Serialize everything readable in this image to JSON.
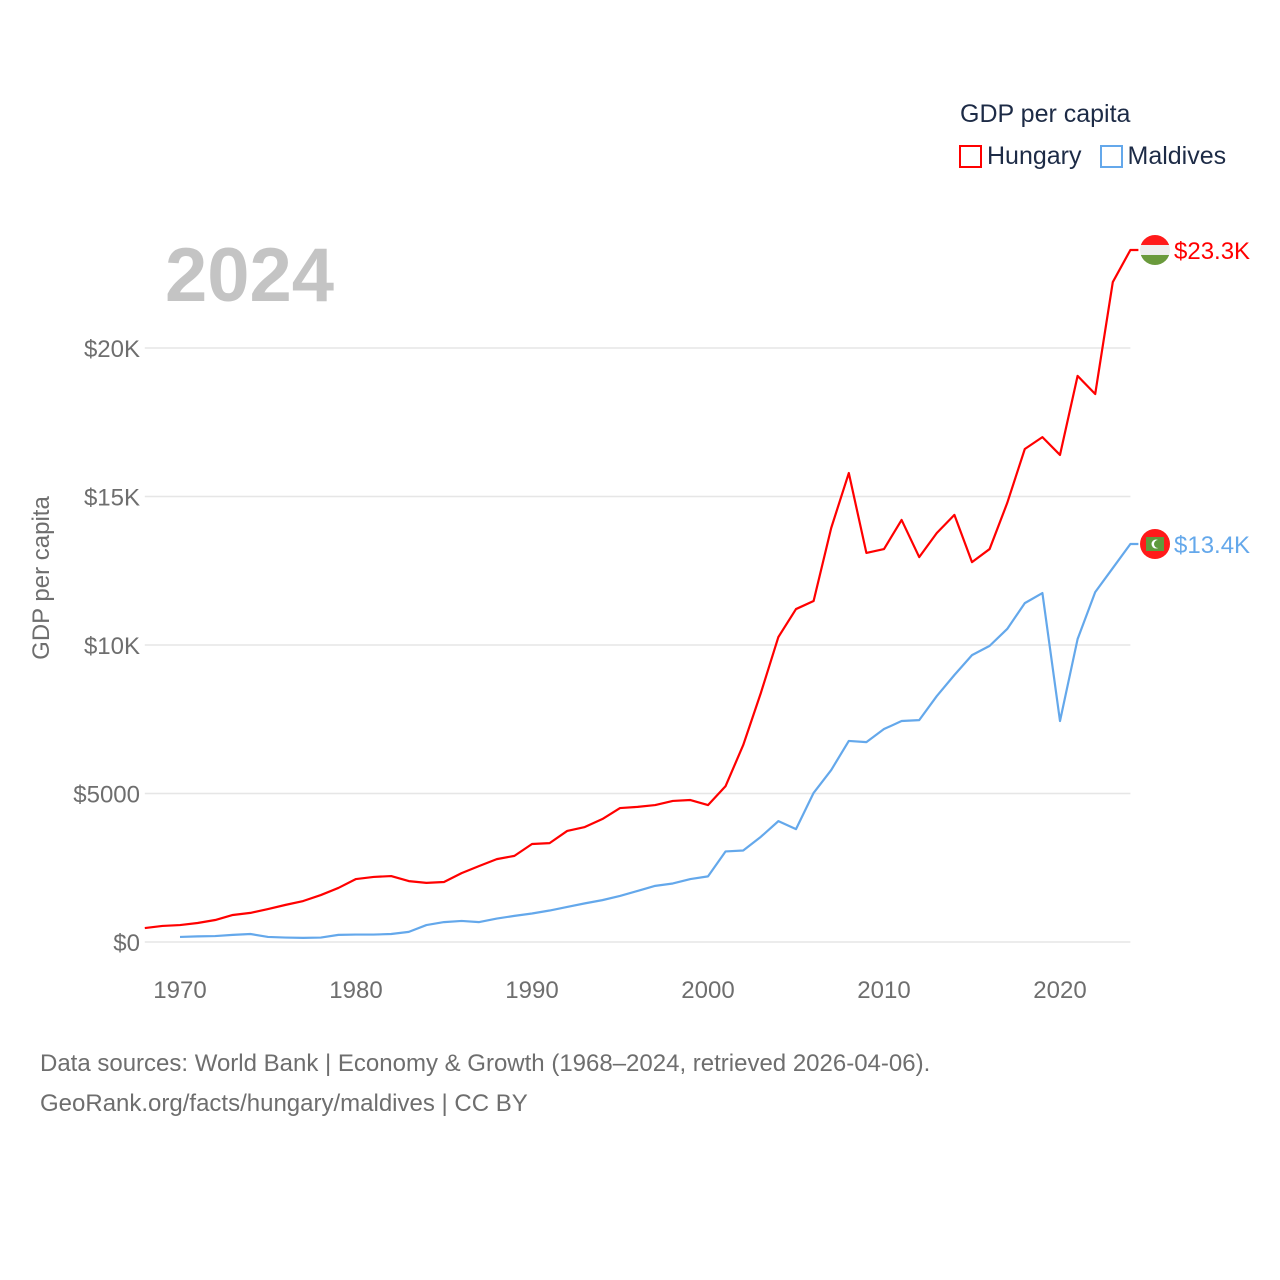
{
  "legend": {
    "title": "GDP per capita",
    "items": [
      {
        "name": "Hungary",
        "color": "#ff0000"
      },
      {
        "name": "Maldives",
        "color": "#64a8eb"
      }
    ]
  },
  "year_label": "2024",
  "footer": {
    "line1": "Data sources: World Bank | Economy & Growth (1968–2024, retrieved 2026-04-06).",
    "line2": "GeoRank.org/facts/hungary/maldives | CC BY"
  },
  "chart_data": {
    "type": "line",
    "title": "",
    "xlabel": "",
    "ylabel": "GDP per capita",
    "xlim": [
      1968,
      2024
    ],
    "ylim": [
      0,
      23300
    ],
    "x_ticks": [
      1970,
      1980,
      1990,
      2000,
      2010,
      2020
    ],
    "x_tick_labels": [
      "1970",
      "1980",
      "1990",
      "2000",
      "2010",
      "2020"
    ],
    "y_ticks": [
      0,
      5000,
      10000,
      15000,
      20000
    ],
    "y_tick_labels": [
      "$0",
      "$5000",
      "$10K",
      "$15K",
      "$20K"
    ],
    "grid": true,
    "legend_position": "top-right",
    "series": [
      {
        "name": "Hungary",
        "color": "#ff0000",
        "end_label": "$23.3K",
        "start_year": 1968,
        "values": [
          470,
          540,
          570,
          640,
          740,
          910,
          980,
          1110,
          1250,
          1380,
          1580,
          1820,
          2120,
          2190,
          2220,
          2050,
          1990,
          2020,
          2320,
          2560,
          2790,
          2900,
          3300,
          3330,
          3740,
          3870,
          4140,
          4510,
          4550,
          4610,
          4750,
          4780,
          4610,
          5250,
          6630,
          8380,
          10270,
          11210,
          11480,
          13940,
          15790,
          13100,
          13230,
          14210,
          12960,
          13770,
          14380,
          12790,
          13230,
          14780,
          16600,
          17000,
          16400,
          19060,
          18450,
          22220,
          23300
        ]
      },
      {
        "name": "Maldives",
        "color": "#64a8eb",
        "end_label": "$13.4K",
        "start_year": 1970,
        "values": [
          170,
          190,
          200,
          240,
          270,
          170,
          150,
          140,
          150,
          240,
          250,
          250,
          270,
          340,
          570,
          670,
          710,
          670,
          790,
          880,
          960,
          1060,
          1180,
          1300,
          1410,
          1550,
          1720,
          1890,
          1970,
          2120,
          2210,
          3050,
          3080,
          3540,
          4070,
          3800,
          5020,
          5790,
          6770,
          6730,
          7170,
          7440,
          7470,
          8280,
          8990,
          9660,
          9970,
          10540,
          11410,
          11750,
          7440,
          10200,
          11780,
          12590,
          13400
        ]
      }
    ]
  }
}
